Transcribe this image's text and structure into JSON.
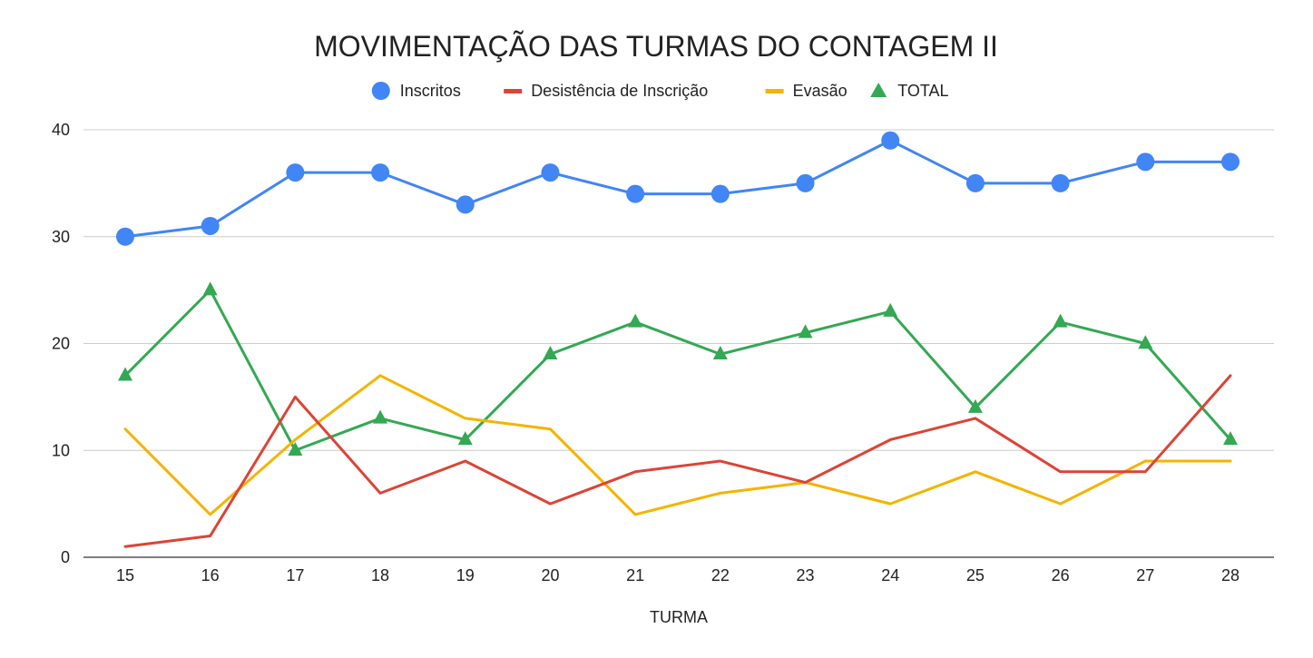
{
  "chart_data": {
    "type": "line",
    "title": "MOVIMENTAÇÃO DAS TURMAS DO CONTAGEM II",
    "xlabel": "TURMA",
    "ylabel": "",
    "categories": [
      "15",
      "16",
      "17",
      "18",
      "19",
      "20",
      "21",
      "22",
      "23",
      "24",
      "25",
      "26",
      "27",
      "28"
    ],
    "ylim": [
      0,
      40
    ],
    "yticks": [
      0,
      10,
      20,
      30,
      40
    ],
    "grid": true,
    "legend_position": "top-center",
    "series": [
      {
        "name": "Inscritos",
        "color": "#4285f4",
        "marker": "circle",
        "values": [
          30,
          31,
          36,
          36,
          33,
          36,
          34,
          34,
          35,
          39,
          35,
          35,
          37,
          37
        ]
      },
      {
        "name": "Desistência de Inscrição",
        "color": "#db4437",
        "marker": "none",
        "values": [
          1,
          2,
          15,
          6,
          9,
          5,
          8,
          9,
          7,
          11,
          13,
          8,
          8,
          17
        ]
      },
      {
        "name": "Evasão",
        "color": "#f4b400",
        "marker": "none",
        "values": [
          12,
          4,
          11,
          17,
          13,
          12,
          4,
          6,
          7,
          5,
          8,
          5,
          9,
          9
        ]
      },
      {
        "name": "TOTAL",
        "color": "#34a853",
        "marker": "triangle",
        "values": [
          17,
          25,
          10,
          13,
          11,
          19,
          22,
          19,
          21,
          23,
          14,
          22,
          20,
          11
        ]
      }
    ]
  }
}
